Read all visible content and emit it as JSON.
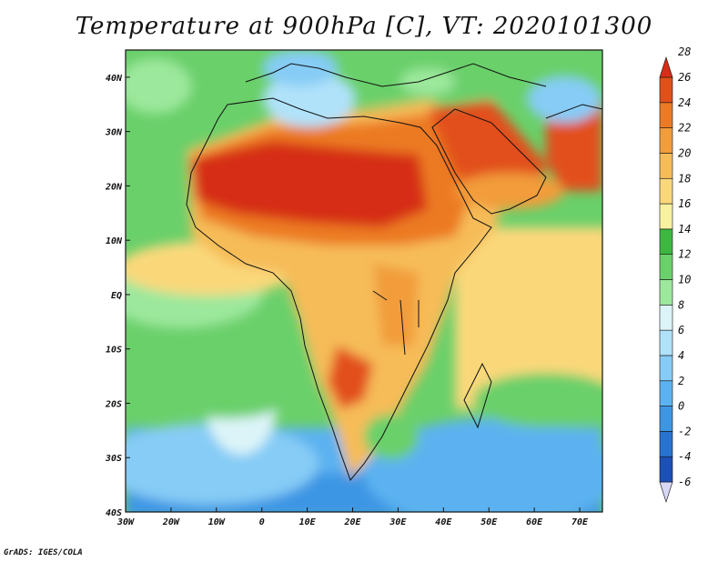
{
  "title": "Temperature at 900hPa [C], VT: 2020101300",
  "credit": "GrADS: IGES/COLA",
  "map": {
    "lon_range": [
      -30,
      75
    ],
    "lat_range": [
      -40,
      45
    ],
    "lon_ticks": [
      "30W",
      "20W",
      "10W",
      "0",
      "10E",
      "20E",
      "30E",
      "40E",
      "50E",
      "60E",
      "70E"
    ],
    "lat_ticks": [
      "40S",
      "30S",
      "20S",
      "10S",
      "EQ",
      "10N",
      "20N",
      "30N",
      "40N"
    ]
  },
  "colorbar": {
    "labels": [
      "-6",
      "-4",
      "-2",
      "0",
      "2",
      "4",
      "6",
      "8",
      "10",
      "12",
      "14",
      "16",
      "18",
      "20",
      "22",
      "24",
      "26",
      "28"
    ],
    "colors": [
      "#1a1a8c",
      "#1c4fb8",
      "#2873d2",
      "#3c96e4",
      "#5cb2f0",
      "#86ccf6",
      "#b0e2fa",
      "#dcf4f8",
      "#9ce89c",
      "#6ad06a",
      "#3cb840",
      "#f8f2a0",
      "#fad87a",
      "#f6bc58",
      "#f29c3a",
      "#ec7a24",
      "#e2501a",
      "#d62e18"
    ]
  }
}
